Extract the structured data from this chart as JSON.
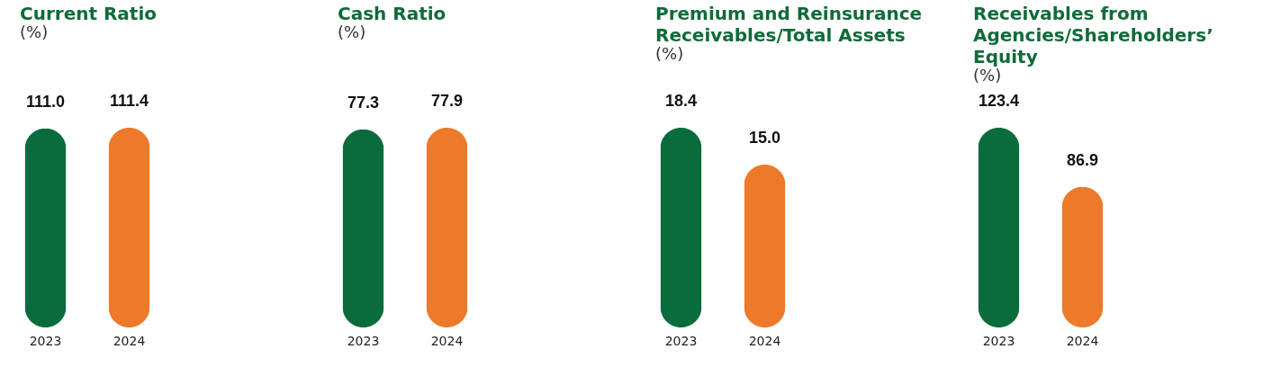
{
  "chart_data": [
    {
      "type": "bar",
      "title": "Current Ratio",
      "subtitle": "(%)",
      "categories": [
        "2023",
        "2024"
      ],
      "values": [
        111.0,
        111.4
      ],
      "colors": [
        "#0a6b3c",
        "#ec7a2a"
      ],
      "value_labels": [
        "111.0",
        "111.4"
      ]
    },
    {
      "type": "bar",
      "title": "Cash Ratio",
      "subtitle": "(%)",
      "categories": [
        "2023",
        "2024"
      ],
      "values": [
        77.3,
        77.9
      ],
      "colors": [
        "#0a6b3c",
        "#ec7a2a"
      ],
      "value_labels": [
        "77.3",
        "77.9"
      ]
    },
    {
      "type": "bar",
      "title": "Premium and Reinsurance Receivables/Total Assets",
      "subtitle": "(%)",
      "categories": [
        "2023",
        "2024"
      ],
      "values": [
        18.4,
        15.0
      ],
      "colors": [
        "#0a6b3c",
        "#ec7a2a"
      ],
      "value_labels": [
        "18.4",
        "15.0"
      ]
    },
    {
      "type": "bar",
      "title": "Receivables from Agencies/Shareholders’ Equity",
      "subtitle": "(%)",
      "categories": [
        "2023",
        "2024"
      ],
      "values": [
        123.4,
        86.9
      ],
      "colors": [
        "#0a6b3c",
        "#ec7a2a"
      ],
      "value_labels": [
        "123.4",
        "86.9"
      ]
    }
  ]
}
